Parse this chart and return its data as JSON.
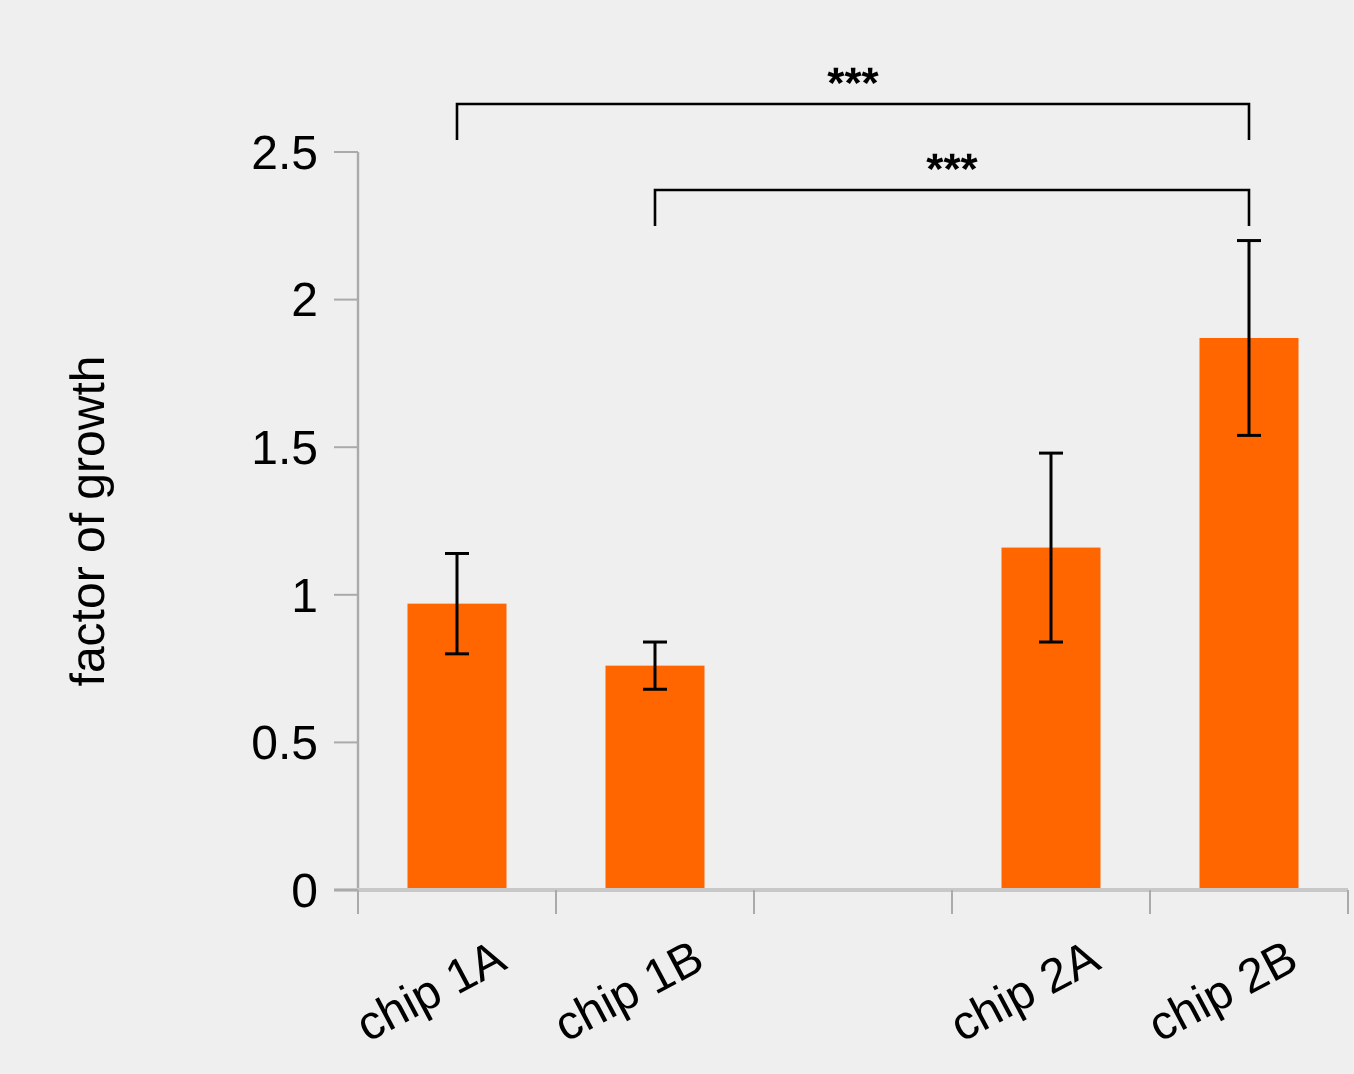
{
  "chart_data": {
    "type": "bar",
    "ylabel": "factor of growth",
    "categories": [
      "chip 1A",
      "chip 1B",
      null,
      "chip 2A",
      "chip 2B"
    ],
    "values": [
      0.97,
      0.76,
      null,
      1.16,
      1.87
    ],
    "errors": [
      0.17,
      0.08,
      null,
      0.32,
      0.33
    ],
    "color": "#ff6600",
    "ylim": [
      0,
      2.5
    ],
    "yticks": [
      0,
      0.5,
      1,
      1.5,
      2,
      2.5
    ],
    "grid": false,
    "annotations": [
      "***",
      "***"
    ]
  }
}
